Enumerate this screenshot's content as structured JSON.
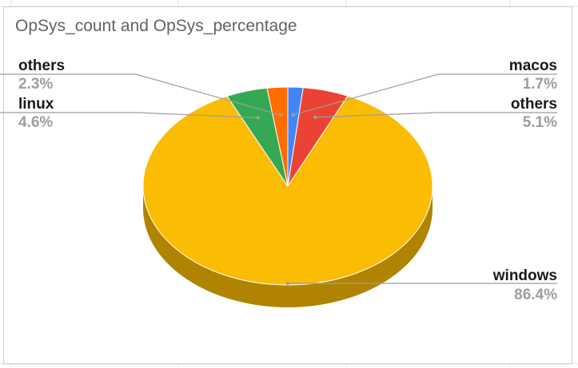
{
  "chart_data": {
    "type": "pie",
    "title": "OpSys_count and OpSys_percentage",
    "three_d": true,
    "legend": "none",
    "slices": [
      {
        "name": "macos",
        "value": 1.7,
        "label": "1.7%",
        "color": "#4285f4",
        "side_color": "#2e5eab"
      },
      {
        "name": "others",
        "value": 5.1,
        "label": "5.1%",
        "color": "#ea4335",
        "side_color": "#a32f25"
      },
      {
        "name": "windows",
        "value": 86.4,
        "label": "86.4%",
        "color": "#fbbc04",
        "side_color": "#b08400"
      },
      {
        "name": "linux",
        "value": 4.6,
        "label": "4.6%",
        "color": "#34a853",
        "side_color": "#24763a"
      },
      {
        "name": "others",
        "value": 2.3,
        "label": "2.3%",
        "color": "#ff6d01",
        "side_color": "#b34c01"
      }
    ]
  }
}
